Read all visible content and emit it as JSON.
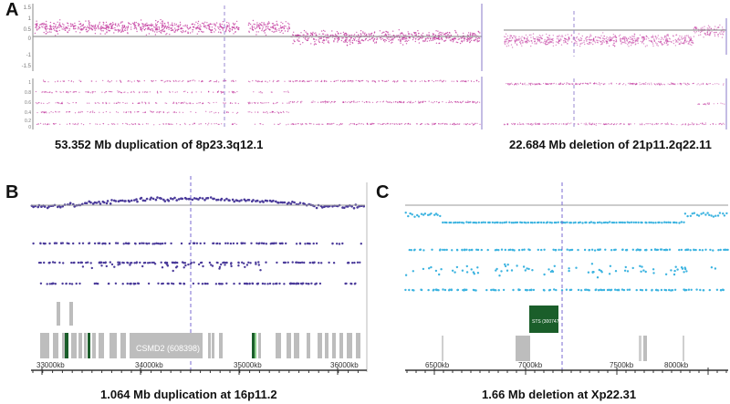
{
  "panels": {
    "a": {
      "letter": "A",
      "left_caption": "53.352 Mb duplication of 8p23.3q12.1",
      "right_caption": "22.684 Mb deletion of 21p11.2q22.11",
      "y_ticks": [
        "1.5",
        "1",
        "0.5",
        "0",
        "-1",
        "-1.5"
      ],
      "lower_ticks": [
        "1",
        "0.8",
        "0.6",
        "0.4",
        "0.2",
        "0"
      ]
    },
    "b": {
      "letter": "B",
      "caption": "1.064 Mb duplication at 16p11.2",
      "gene_label": "CSMD2 (608398)",
      "axis_ticks": [
        "33000kb",
        "34000kb",
        "35000kb",
        "36000kb"
      ]
    },
    "c": {
      "letter": "C",
      "caption": "1.66 Mb deletion at Xp22.31",
      "gene_label": "STS (300747)",
      "axis_ticks": [
        "6500kb",
        "7000kb",
        "7500kb",
        "8000kb"
      ]
    }
  },
  "colors": {
    "magenta": "#c0309a",
    "purple": "#4a3a9a",
    "cyan": "#3bb3e0",
    "gene_gray": "#bdbdbd",
    "gene_green": "#1a5e2a",
    "dashed": "#9a8ad0"
  }
}
